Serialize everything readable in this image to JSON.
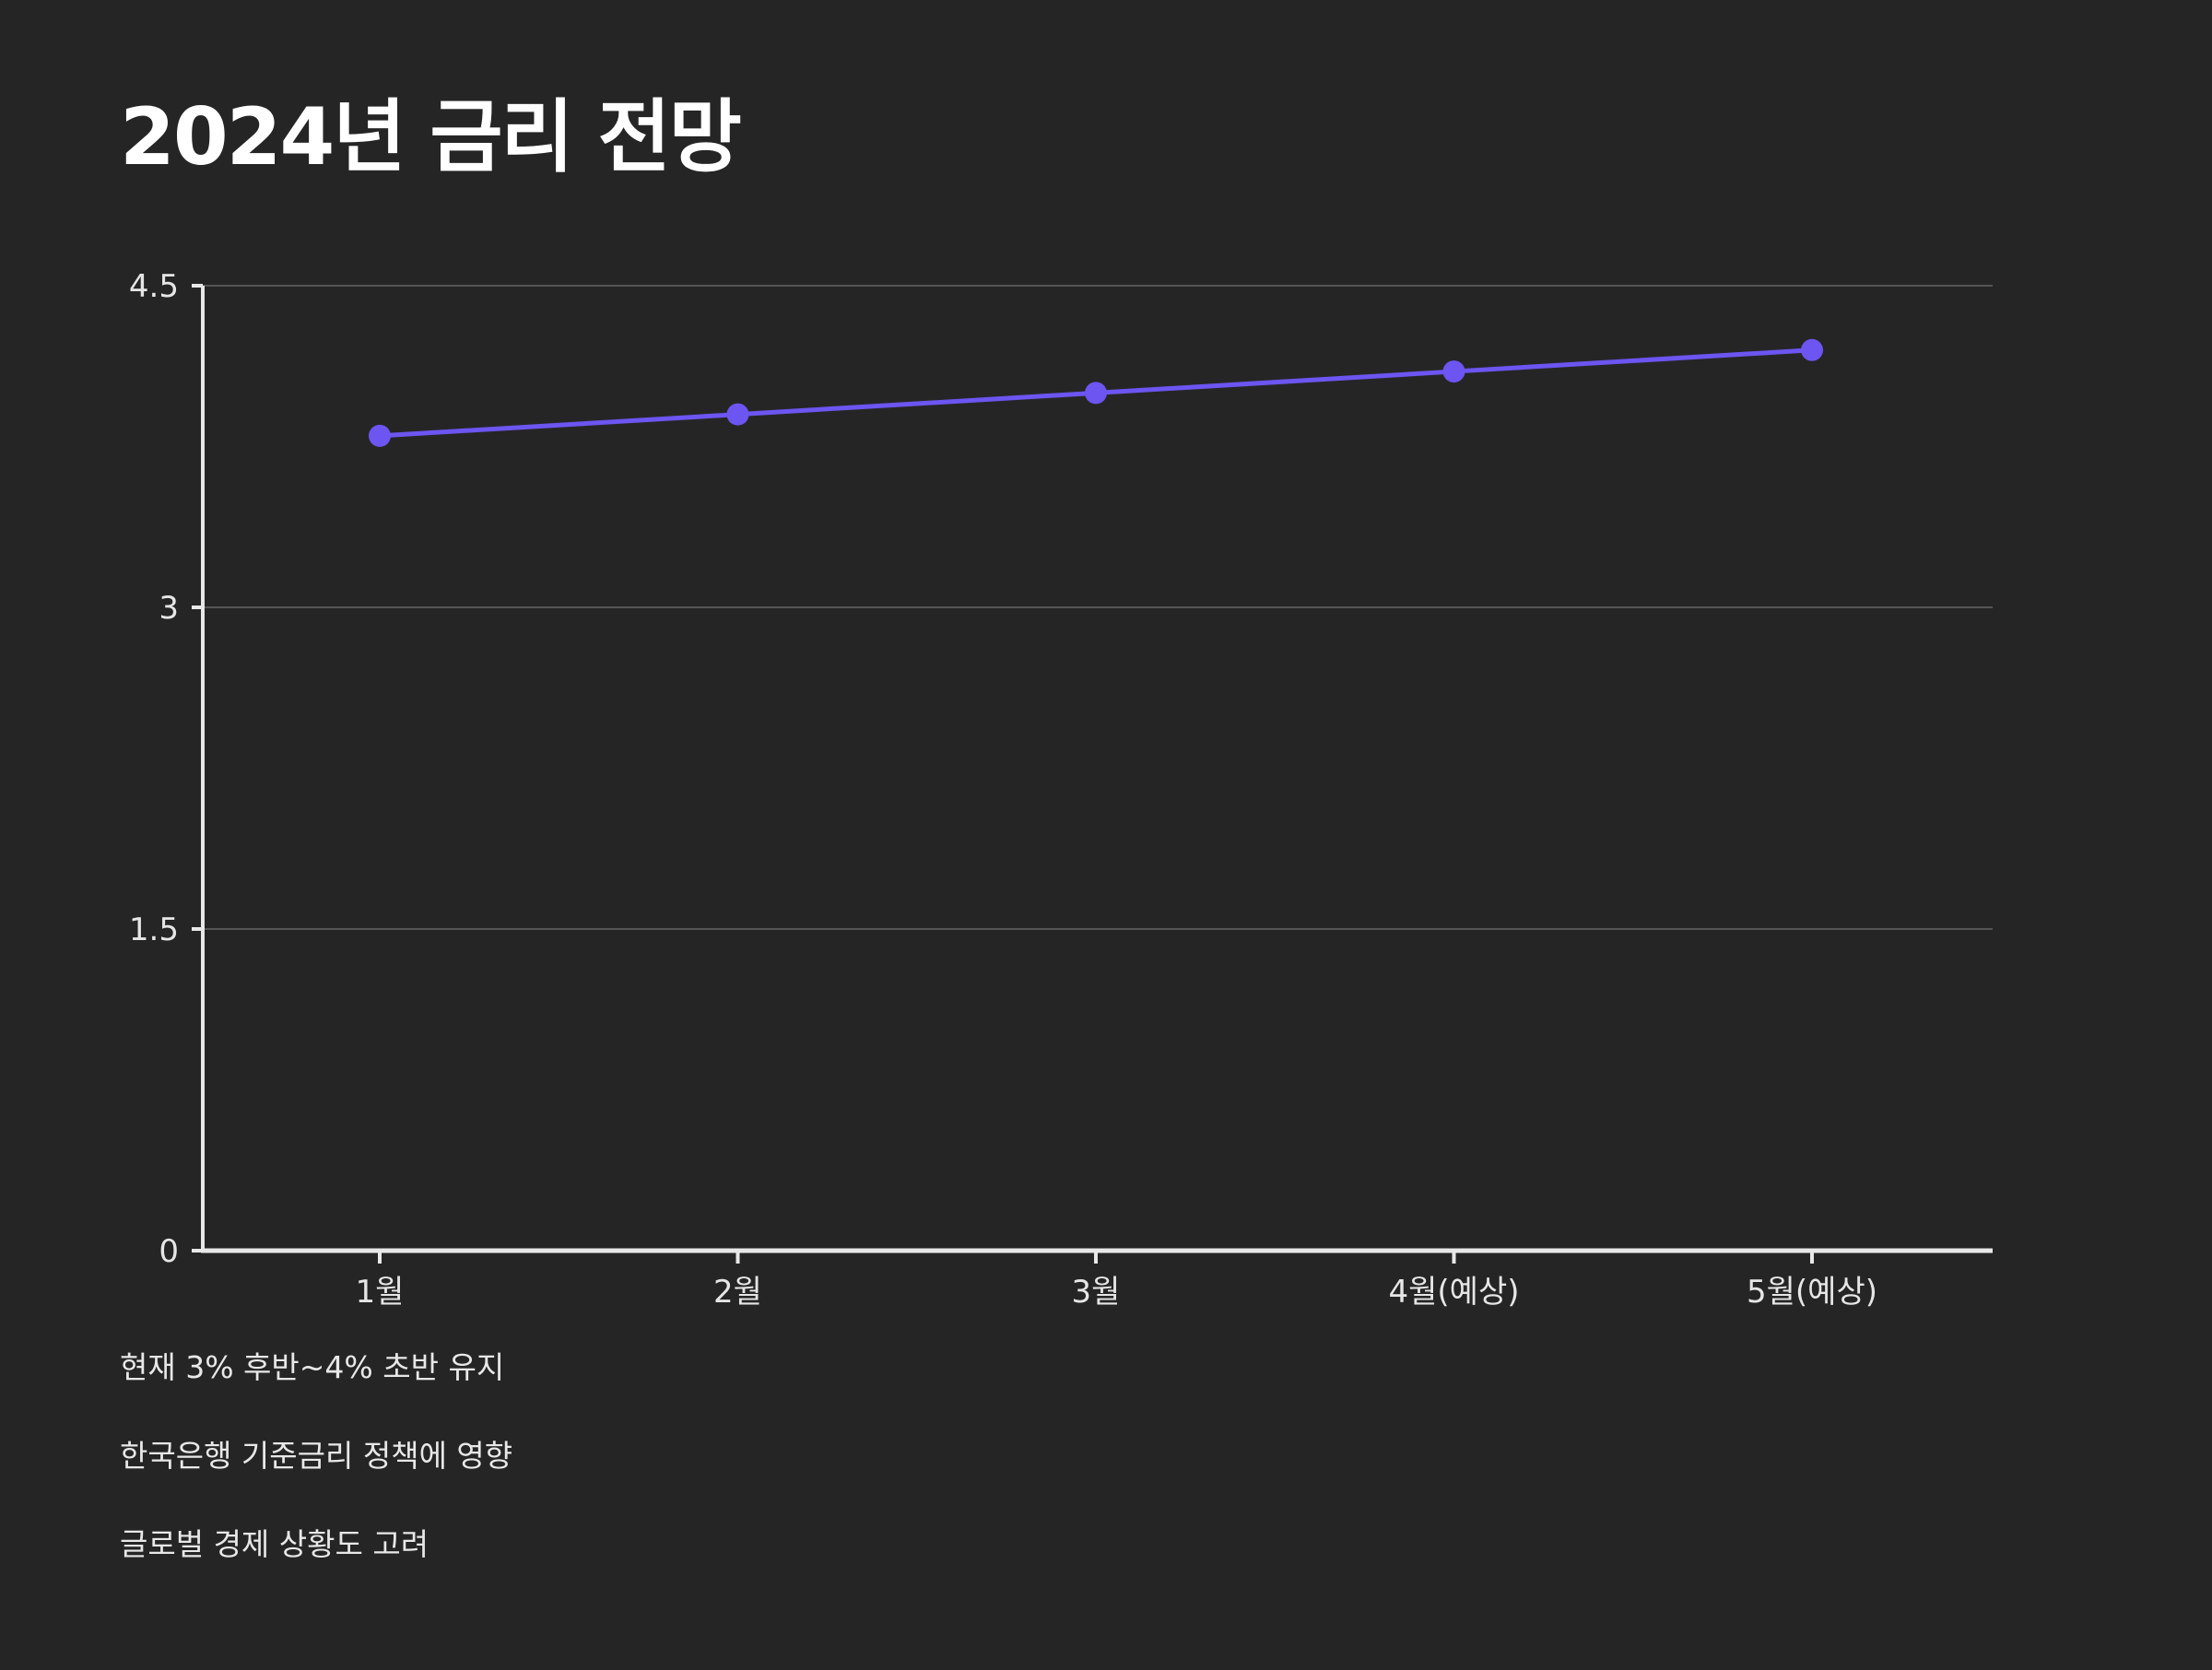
{
  "colors": {
    "background": "#262526",
    "line": "#6c55f0",
    "axis": "#e8e8e8",
    "grid": "#555555",
    "text": "#e8e8e8"
  },
  "chart_data": {
    "type": "line",
    "title": "2024년 금리 전망",
    "categories": [
      "1월",
      "2월",
      "3월",
      "4월(예상)",
      "5월(예상)"
    ],
    "series": [
      {
        "values": [
          3.8,
          3.9,
          4.0,
          4.1,
          4.2
        ]
      }
    ],
    "yticks": [
      "4.5",
      "3",
      "1.5",
      "0"
    ],
    "ytick_values": [
      4.5,
      3,
      1.5,
      0
    ],
    "ylim": [
      0,
      4.5
    ],
    "xlabel": "",
    "ylabel": "",
    "grid": "horizontal"
  },
  "notes": [
    "현재 3% 후반~4% 초반 유지",
    "한국은행 기준금리 정책에 영향",
    "글로벌 경제 상황도 고려"
  ]
}
